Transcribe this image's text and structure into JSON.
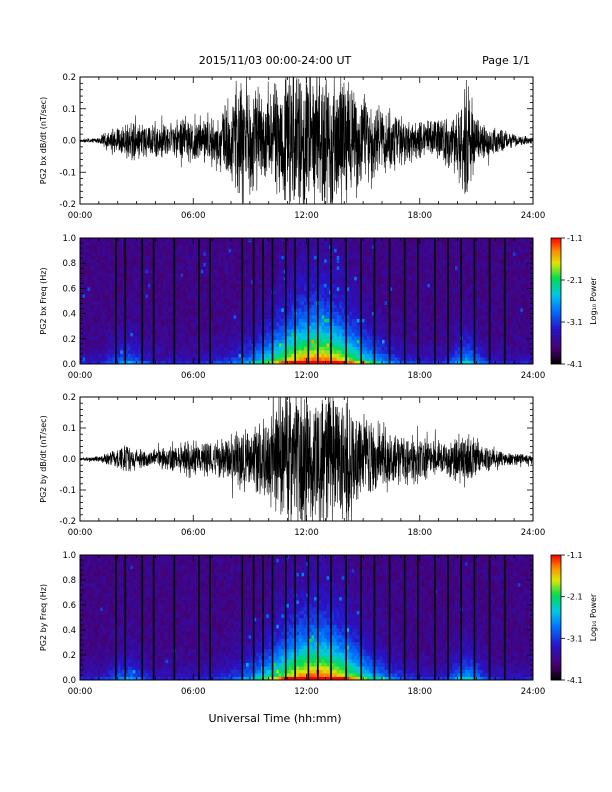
{
  "header": {
    "title": "2015/11/03  00:00-24:00 UT",
    "page": "Page 1/1"
  },
  "footer": {
    "xlabel": "Universal Time (hh:mm)"
  },
  "chart_data": [
    {
      "type": "line",
      "ylabel": "PG2 bx dB/dt (nT/sec)",
      "xlim": [
        "00:00",
        "24:00"
      ],
      "ylim": [
        -0.2,
        0.2
      ],
      "xticks": [
        "00:00",
        "06:00",
        "12:00",
        "18:00",
        "24:00"
      ],
      "yticks": [
        "-0.2",
        "-0.1",
        "0.0",
        "0.1",
        "0.2"
      ],
      "envelope": {
        "hours": [
          0,
          1,
          1.5,
          2,
          3,
          4,
          5,
          6,
          7,
          8,
          8.5,
          9,
          10,
          11,
          12,
          13,
          14,
          15,
          16,
          17,
          18,
          19,
          20,
          20.5,
          21,
          22,
          23,
          24
        ],
        "amplitude": [
          0.005,
          0.01,
          0.03,
          0.05,
          0.06,
          0.05,
          0.06,
          0.07,
          0.08,
          0.13,
          0.2,
          0.17,
          0.16,
          0.22,
          0.22,
          0.22,
          0.2,
          0.15,
          0.1,
          0.08,
          0.06,
          0.06,
          0.1,
          0.2,
          0.07,
          0.04,
          0.02,
          0.01
        ]
      }
    },
    {
      "type": "heatmap",
      "ylabel": "PG2 bx Freq (Hz)",
      "xlim": [
        "00:00",
        "24:00"
      ],
      "ylim": [
        0.0,
        1.0
      ],
      "xticks": [
        "00:00",
        "06:00",
        "12:00",
        "18:00",
        "24:00"
      ],
      "yticks": [
        "0.0",
        "0.2",
        "0.4",
        "0.6",
        "0.8",
        "1.0"
      ],
      "colorbar": {
        "label": "Log₁₀ Power",
        "ticks": [
          "-1.1",
          "-2.1",
          "-3.1",
          "-4.1"
        ],
        "range": [
          -4.1,
          -1.1
        ]
      },
      "gap_hours": [
        1.9,
        2.4,
        3.3,
        3.9,
        5.0,
        6.3,
        6.9,
        8.6,
        9.2,
        9.7,
        10.2,
        10.9,
        11.4,
        12.1,
        12.6,
        13.3,
        14.1,
        14.9,
        15.6,
        16.4,
        17.2,
        17.9,
        18.8,
        19.5,
        20.2,
        20.9,
        21.7,
        22.5
      ]
    },
    {
      "type": "line",
      "ylabel": "PG2 by dB/dt (nT/sec)",
      "xlim": [
        "00:00",
        "24:00"
      ],
      "ylim": [
        -0.2,
        0.2
      ],
      "xticks": [
        "00:00",
        "06:00",
        "12:00",
        "18:00",
        "24:00"
      ],
      "yticks": [
        "-0.2",
        "-0.1",
        "0.0",
        "0.1",
        "0.2"
      ],
      "envelope": {
        "hours": [
          0,
          1,
          2,
          2.5,
          3,
          4,
          5,
          6,
          7,
          8,
          8.5,
          9,
          10,
          10.5,
          11,
          12,
          13,
          14,
          15,
          16,
          17,
          18,
          19,
          20,
          20.5,
          21,
          22,
          23,
          24
        ],
        "amplitude": [
          0.005,
          0.01,
          0.03,
          0.05,
          0.03,
          0.03,
          0.04,
          0.06,
          0.05,
          0.08,
          0.1,
          0.09,
          0.14,
          0.2,
          0.22,
          0.22,
          0.22,
          0.2,
          0.14,
          0.1,
          0.08,
          0.07,
          0.06,
          0.07,
          0.09,
          0.05,
          0.03,
          0.02,
          0.015
        ]
      }
    },
    {
      "type": "heatmap",
      "ylabel": "PG2 by Freq (Hz)",
      "xlim": [
        "00:00",
        "24:00"
      ],
      "ylim": [
        0.0,
        1.0
      ],
      "xticks": [
        "00:00",
        "06:00",
        "12:00",
        "18:00",
        "24:00"
      ],
      "yticks": [
        "0.0",
        "0.2",
        "0.4",
        "0.6",
        "0.8",
        "1.0"
      ],
      "colorbar": {
        "label": "Log₁₀ Power",
        "ticks": [
          "-1.1",
          "-2.1",
          "-3.1",
          "-4.1"
        ],
        "range": [
          -4.1,
          -1.1
        ]
      },
      "gap_hours": [
        1.9,
        2.4,
        3.3,
        3.9,
        5.0,
        6.3,
        6.9,
        8.6,
        9.2,
        9.7,
        10.2,
        10.9,
        11.4,
        12.1,
        12.6,
        13.3,
        14.1,
        14.9,
        15.6,
        16.4,
        17.2,
        17.9,
        18.8,
        19.5,
        20.2,
        20.9,
        21.7,
        22.5
      ]
    }
  ]
}
